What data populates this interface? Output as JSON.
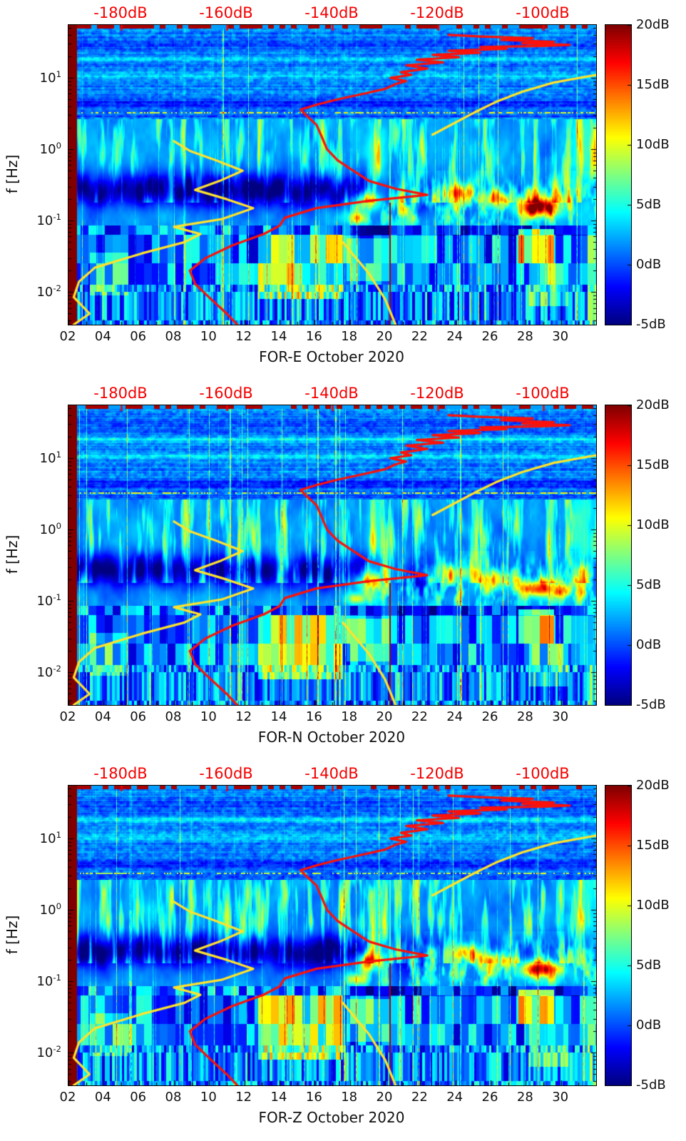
{
  "chart_data": {
    "type": "heatmap",
    "title": "",
    "description": "Three stacked seismic spectrogram panels for station FOR, components E, N and Z, October 2020. Each panel shows spectral power in dB (jet colormap, -5dB to 20dB) versus day of month (x axis, days 02-30) and frequency in Hz (logarithmic y axis, ~0.0035 to 55 Hz). Red and yellow overlaid curves are PSD-versus-frequency profiles referenced to the red dB axis along the top (-190 to -90 dB).",
    "panels": [
      {
        "name": "FOR-E",
        "xlabel": "FOR-E October 2020",
        "seed": 3
      },
      {
        "name": "FOR-N",
        "xlabel": "FOR-N October 2020",
        "seed": 17
      },
      {
        "name": "FOR-Z",
        "xlabel": "FOR-Z October 2020",
        "seed": 29
      }
    ],
    "x_axis": {
      "range_days": [
        2,
        32
      ],
      "tick_days": [
        2,
        4,
        6,
        8,
        10,
        12,
        14,
        16,
        18,
        20,
        22,
        24,
        26,
        28,
        30
      ],
      "tick_labels": [
        "02",
        "04",
        "06",
        "08",
        "10",
        "12",
        "14",
        "16",
        "18",
        "20",
        "22",
        "24",
        "26",
        "28",
        "30"
      ]
    },
    "y_axis": {
      "label": "f [Hz]",
      "scale": "log",
      "range_hz": [
        0.0035,
        55
      ],
      "tick_exponents": [
        1,
        0,
        -1,
        -2
      ],
      "tick_labels": [
        "10^1",
        "10^0",
        "10^-1",
        "10^-2"
      ]
    },
    "top_axis": {
      "color": "#f40000",
      "range_db": [
        -190,
        -90
      ],
      "tick_db": [
        -180,
        -160,
        -140,
        -120,
        -100
      ],
      "tick_labels": [
        "-180dB",
        "-160dB",
        "-140dB",
        "-120dB",
        "-100dB"
      ]
    },
    "colorbar": {
      "colormap": "jet",
      "range_db": [
        -5,
        20
      ],
      "tick_db": [
        20,
        15,
        10,
        5,
        0,
        -5
      ],
      "tick_labels": [
        "20dB",
        "15dB",
        "10dB",
        "5dB",
        "0dB",
        "-5dB"
      ]
    },
    "overlays": {
      "red_psd_curve": {
        "color": "#fb120a",
        "line_width": 3.2,
        "points_db_hz": [
          [
            -158,
            0.0035
          ],
          [
            -160,
            0.005
          ],
          [
            -163,
            0.008
          ],
          [
            -166,
            0.013
          ],
          [
            -167,
            0.02
          ],
          [
            -164,
            0.03
          ],
          [
            -159,
            0.045
          ],
          [
            -153,
            0.065
          ],
          [
            -150,
            0.085
          ],
          [
            -149,
            0.11
          ],
          [
            -143,
            0.15
          ],
          [
            -133,
            0.19
          ],
          [
            -122,
            0.23
          ],
          [
            -128,
            0.28
          ],
          [
            -133,
            0.36
          ],
          [
            -136,
            0.5
          ],
          [
            -139,
            0.7
          ],
          [
            -141,
            1.0
          ],
          [
            -142,
            1.5
          ],
          [
            -143,
            2.2
          ],
          [
            -145,
            3.0
          ],
          [
            -146,
            3.6
          ],
          [
            -143,
            4.2
          ],
          [
            -139,
            5.0
          ],
          [
            -134,
            6.0
          ],
          [
            -130,
            7.0
          ],
          [
            -128,
            8.2
          ],
          [
            -126,
            9.0
          ],
          [
            -129,
            10.0
          ],
          [
            -125,
            11.0
          ],
          [
            -127,
            12.0
          ],
          [
            -122,
            13.5
          ],
          [
            -126,
            15.0
          ],
          [
            -119,
            16.5
          ],
          [
            -124,
            18.0
          ],
          [
            -116,
            19.5
          ],
          [
            -121,
            21.0
          ],
          [
            -112,
            22.5
          ],
          [
            -118,
            24.0
          ],
          [
            -107,
            25.5
          ],
          [
            -112,
            27.0
          ],
          [
            -100,
            28.0
          ],
          [
            -95,
            29.0
          ],
          [
            -104,
            30.5
          ],
          [
            -98,
            32.0
          ],
          [
            -108,
            34.0
          ],
          [
            -102,
            36.0
          ],
          [
            -112,
            38.0
          ],
          [
            -118,
            40.0
          ]
        ]
      },
      "yellow_psd_curve": {
        "color": "#ffe32b",
        "line_width": 3.2,
        "segments": [
          [
            [
              -189,
              0.0035
            ],
            [
              -186,
              0.005
            ],
            [
              -189,
              0.0085
            ],
            [
              -188,
              0.014
            ],
            [
              -185,
              0.022
            ],
            [
              -176,
              0.035
            ],
            [
              -168,
              0.05
            ],
            [
              -165,
              0.065
            ],
            [
              -170,
              0.082
            ],
            [
              -161,
              0.105
            ],
            [
              -155,
              0.15
            ],
            [
              -160,
              0.2
            ],
            [
              -166,
              0.27
            ],
            [
              -161,
              0.37
            ],
            [
              -157,
              0.5
            ],
            [
              -162,
              0.7
            ],
            [
              -167,
              0.95
            ],
            [
              -170,
              1.3
            ]
          ],
          [
            [
              -121,
              1.6
            ],
            [
              -117,
              2.3
            ],
            [
              -113,
              3.3
            ],
            [
              -109,
              4.6
            ],
            [
              -104,
              6.4
            ],
            [
              -98,
              8.6
            ],
            [
              -90,
              11
            ]
          ],
          [
            [
              -138,
              0.05
            ],
            [
              -133,
              0.018
            ],
            [
              -130,
              0.008
            ],
            [
              -128,
              0.0035
            ]
          ]
        ]
      }
    }
  }
}
